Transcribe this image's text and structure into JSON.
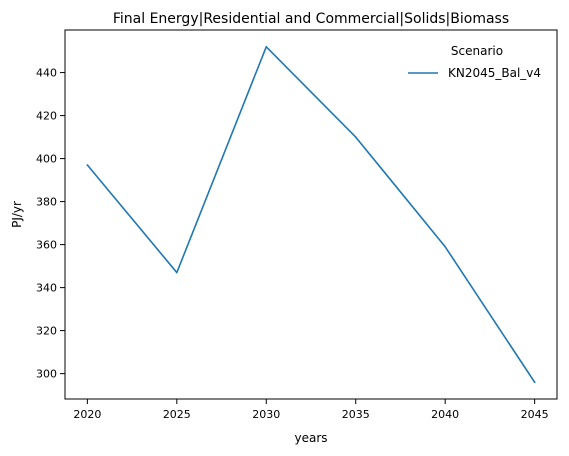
{
  "chart_data": {
    "type": "line",
    "title": "Final Energy|Residential and Commercial|Solids|Biomass",
    "xlabel": "years",
    "ylabel": "PJ/yr",
    "x": [
      2020,
      2025,
      2030,
      2035,
      2040,
      2045
    ],
    "x_ticks": [
      2020,
      2025,
      2030,
      2035,
      2040,
      2045
    ],
    "y_ticks": [
      300,
      320,
      340,
      360,
      380,
      400,
      420,
      440
    ],
    "xlim": [
      2018.75,
      2046.25
    ],
    "ylim": [
      288.2,
      459.8
    ],
    "grid": false,
    "legend": {
      "title": "Scenario",
      "position": "top-right"
    },
    "series": [
      {
        "name": "KN2045_Bal_v4",
        "color": "#1f77b4",
        "values": [
          397,
          347,
          452,
          410,
          359,
          296
        ]
      }
    ]
  }
}
